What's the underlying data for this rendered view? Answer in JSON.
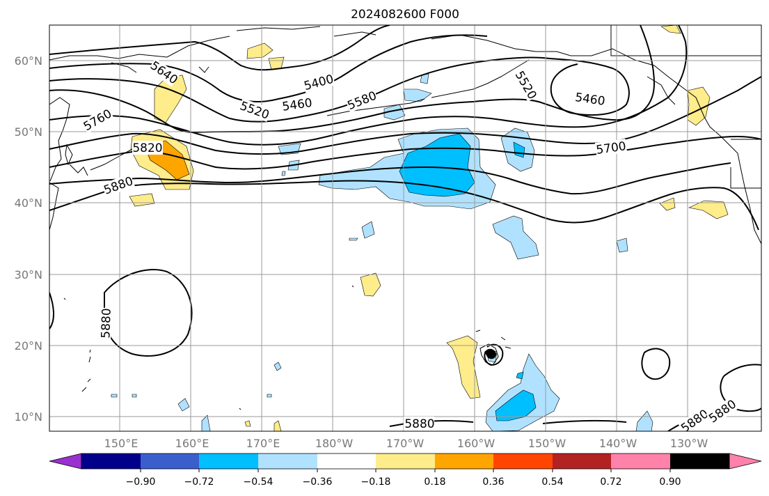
{
  "title": "2024082600 F000",
  "map": {
    "lat_ticks": [
      "60°N",
      "50°N",
      "40°N",
      "30°N",
      "20°N",
      "10°N"
    ],
    "lon_ticks": [
      "150°E",
      "160°E",
      "170°E",
      "180°W",
      "170°W",
      "160°W",
      "150°W",
      "140°W",
      "130°W"
    ],
    "contour_labels": [
      "5640",
      "5760",
      "5820",
      "5880",
      "5880",
      "5400",
      "5460",
      "5520",
      "5580",
      "5520",
      "5460",
      "5700",
      "5880",
      "5880",
      "5880"
    ],
    "grid": true
  },
  "colorbar": {
    "colors": [
      "#9b30d0",
      "#00008b",
      "#3a5fcd",
      "#00bfff",
      "#b0e2ff",
      "#ffffff",
      "#ffec8b",
      "#ffa500",
      "#ff4500",
      "#b22222",
      "#ff82ab"
    ],
    "tick_labels": [
      "−0.90",
      "−0.72",
      "−0.54",
      "−0.36",
      "−0.18",
      "0.18",
      "0.36",
      "0.54",
      "0.72",
      "0.90"
    ],
    "extend": "both"
  }
}
